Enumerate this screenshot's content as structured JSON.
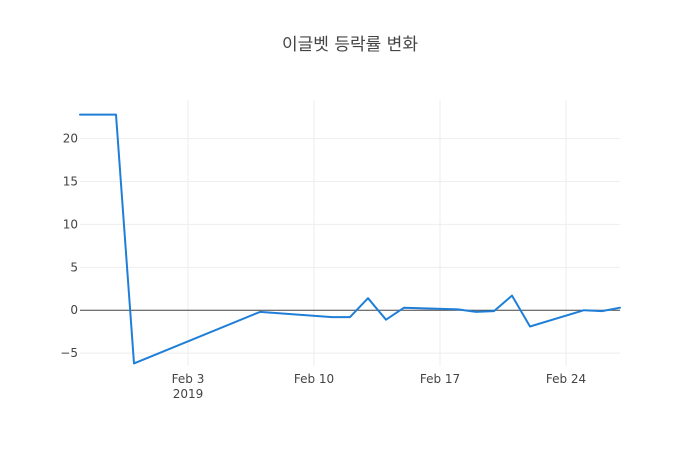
{
  "chart_data": {
    "type": "line",
    "title": "이글벳 등락률 변화",
    "xlabel": "",
    "ylabel": "",
    "x_ticks": [
      {
        "date": "2019-02-03",
        "label": "Feb 3",
        "sublabel": "2019"
      },
      {
        "date": "2019-02-10",
        "label": "Feb 10",
        "sublabel": ""
      },
      {
        "date": "2019-02-17",
        "label": "Feb 17",
        "sublabel": ""
      },
      {
        "date": "2019-02-24",
        "label": "Feb 24",
        "sublabel": ""
      }
    ],
    "y_ticks": [
      {
        "value": -5,
        "label": "−5"
      },
      {
        "value": 0,
        "label": "0"
      },
      {
        "value": 5,
        "label": "5"
      },
      {
        "value": 10,
        "label": "10"
      },
      {
        "value": 15,
        "label": "15"
      },
      {
        "value": 20,
        "label": "20"
      }
    ],
    "xlim": [
      "2019-01-28",
      "2019-02-27"
    ],
    "ylim": [
      -6.5,
      24.5
    ],
    "grid": true,
    "series": [
      {
        "color": "#1f7fd8",
        "points": [
          {
            "x": "2019-01-28",
            "y": 22.8
          },
          {
            "x": "2019-01-30",
            "y": 22.8
          },
          {
            "x": "2019-01-31",
            "y": -6.2
          },
          {
            "x": "2019-02-07",
            "y": -0.2
          },
          {
            "x": "2019-02-11",
            "y": -0.8
          },
          {
            "x": "2019-02-12",
            "y": -0.8
          },
          {
            "x": "2019-02-13",
            "y": 1.4
          },
          {
            "x": "2019-02-14",
            "y": -1.1
          },
          {
            "x": "2019-02-15",
            "y": 0.3
          },
          {
            "x": "2019-02-18",
            "y": 0.1
          },
          {
            "x": "2019-02-19",
            "y": -0.2
          },
          {
            "x": "2019-02-20",
            "y": -0.1
          },
          {
            "x": "2019-02-21",
            "y": 1.7
          },
          {
            "x": "2019-02-22",
            "y": -1.9
          },
          {
            "x": "2019-02-25",
            "y": 0.0
          },
          {
            "x": "2019-02-26",
            "y": -0.1
          },
          {
            "x": "2019-02-27",
            "y": 0.3
          }
        ]
      }
    ]
  }
}
